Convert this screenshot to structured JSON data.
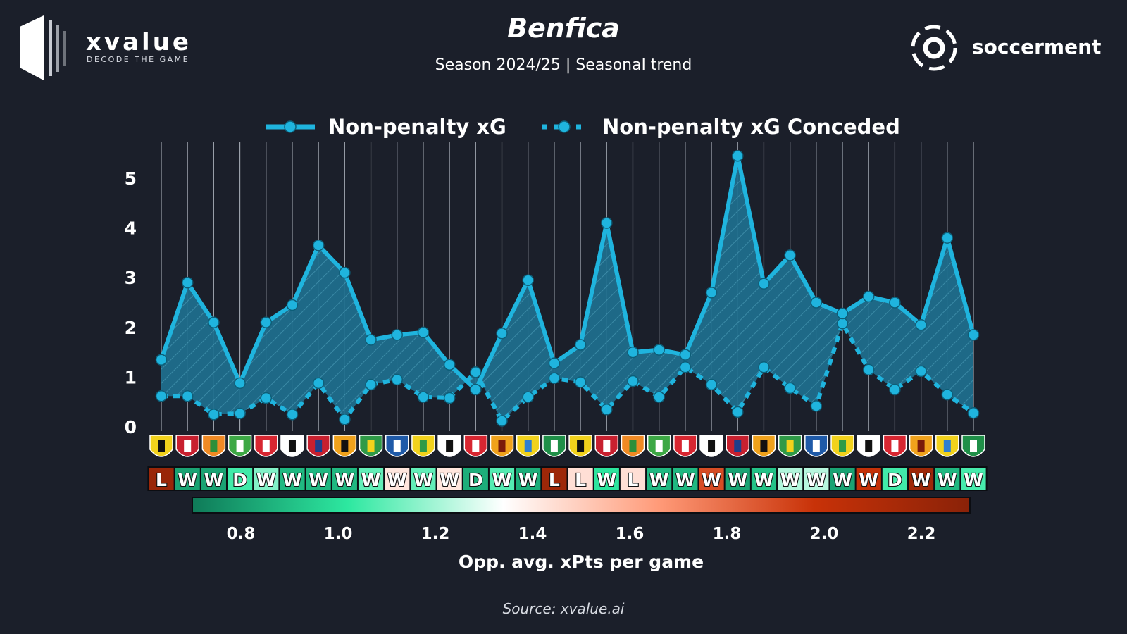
{
  "header": {
    "title": "Benfica",
    "subtitle": "Season 2024/25 | Seasonal trend",
    "source": "Source: xvalue.ai"
  },
  "brands": {
    "left": {
      "wordmark": "xvalue",
      "tagline": "DECODE THE GAME"
    },
    "right": {
      "wordmark": "soccerment"
    }
  },
  "colors": {
    "background": "#1b1f2a",
    "line": "#1fb4de",
    "fill": "#1e6d8c",
    "gridline": "#9aa0aa"
  },
  "chart_data": {
    "type": "line",
    "ylim": [
      0,
      5.5
    ],
    "yticks": [
      0,
      1,
      2,
      3,
      4,
      5
    ],
    "legend_position": "top-center",
    "series": [
      {
        "name": "Non-penalty xG",
        "style": "solid",
        "values": [
          1.35,
          2.9,
          2.1,
          0.88,
          2.1,
          2.45,
          3.65,
          3.1,
          1.75,
          1.85,
          1.9,
          1.25,
          0.75,
          1.88,
          2.95,
          1.28,
          1.65,
          4.1,
          1.5,
          1.55,
          1.45,
          2.7,
          5.45,
          2.88,
          3.45,
          2.5,
          2.28,
          2.62,
          2.5,
          2.05,
          3.8,
          1.85
        ]
      },
      {
        "name": "Non-penalty xG Conceded",
        "style": "dotted",
        "values": [
          0.62,
          0.62,
          0.25,
          0.27,
          0.58,
          0.25,
          0.88,
          0.15,
          0.85,
          0.95,
          0.6,
          0.58,
          1.1,
          0.12,
          0.6,
          0.98,
          0.9,
          0.35,
          0.92,
          0.6,
          1.2,
          0.85,
          0.3,
          1.2,
          0.78,
          0.42,
          2.08,
          1.15,
          0.75,
          1.12,
          0.65,
          0.28
        ]
      }
    ],
    "results": [
      "L",
      "W",
      "W",
      "D",
      "W",
      "W",
      "W",
      "W",
      "W",
      "W",
      "W",
      "W",
      "D",
      "W",
      "W",
      "L",
      "L",
      "W",
      "L",
      "W",
      "W",
      "W",
      "W",
      "W",
      "W",
      "W",
      "W",
      "W",
      "D",
      "W",
      "W",
      "W"
    ],
    "opp_xpts": [
      2.22,
      0.82,
      0.82,
      1.05,
      1.15,
      0.88,
      0.88,
      0.88,
      1.1,
      1.42,
      1.1,
      1.42,
      0.85,
      1.08,
      0.85,
      2.2,
      1.44,
      1.01,
      1.44,
      0.88,
      0.88,
      1.9,
      0.82,
      0.91,
      1.22,
      1.23,
      0.82,
      2.0,
      1.05,
      2.2,
      0.88,
      1.06
    ],
    "colorbar": {
      "label": "Opp. avg. xPts per game",
      "min": 0.7,
      "max": 2.3,
      "ticks": [
        "0.8",
        "1.0",
        "1.2",
        "1.4",
        "1.6",
        "1.8",
        "2.0",
        "2.2"
      ],
      "colors": [
        "#0f7a58",
        "#2de8a0",
        "#ffffff",
        "#ff9a78",
        "#c83208",
        "#8a2208"
      ]
    }
  }
}
